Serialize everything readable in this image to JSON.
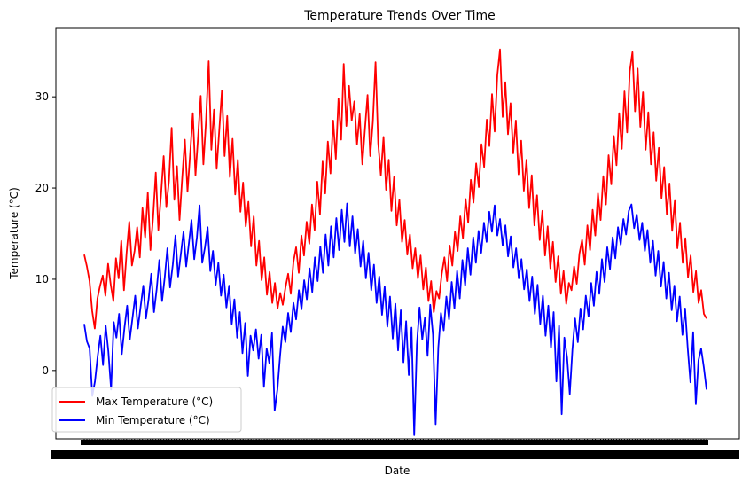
{
  "chart_data": {
    "type": "line",
    "title": "Temperature Trends Over Time",
    "xlabel": "Date",
    "ylabel": "Temperature (°C)",
    "ylim": [
      -7.5,
      37.5
    ],
    "yticks": [
      0,
      10,
      20,
      30
    ],
    "grid": false,
    "legend_position": "lower-left",
    "note": "Daily series over four annual cycles; x tick labels are overplotted and illegible.",
    "series": [
      {
        "name": "Max Temperature (°C)",
        "color": "#ff0000",
        "values": [
          12.7,
          11.4,
          9.8,
          6.5,
          4.6,
          7.9,
          9.3,
          10.4,
          8.2,
          11.7,
          9.4,
          7.6,
          12.3,
          10.1,
          14.2,
          8.8,
          12.9,
          16.3,
          11.5,
          13.1,
          15.7,
          12.4,
          17.8,
          14.6,
          19.5,
          13.2,
          16.8,
          21.7,
          15.4,
          19.2,
          23.5,
          17.9,
          20.8,
          26.6,
          18.7,
          22.4,
          16.5,
          21.1,
          25.3,
          19.6,
          23.8,
          28.2,
          21.4,
          25.7,
          30.1,
          22.6,
          27.4,
          33.9,
          24.2,
          28.6,
          22.1,
          26.3,
          30.7,
          23.5,
          27.9,
          21.2,
          25.4,
          19.3,
          23.1,
          17.4,
          20.6,
          15.8,
          18.5,
          13.6,
          16.9,
          11.5,
          14.2,
          9.9,
          12.4,
          8.3,
          10.8,
          7.4,
          9.6,
          6.8,
          8.5,
          7.2,
          9.1,
          10.6,
          8.4,
          11.9,
          13.5,
          10.7,
          14.8,
          12.6,
          16.3,
          13.9,
          18.2,
          15.4,
          20.7,
          17.1,
          22.9,
          19.4,
          25.1,
          21.6,
          27.4,
          23.2,
          29.8,
          25.3,
          33.6,
          26.8,
          31.2,
          27.4,
          29.5,
          24.8,
          28.1,
          22.6,
          26.4,
          30.2,
          23.5,
          27.3,
          33.8,
          24.9,
          21.4,
          25.6,
          19.8,
          23.1,
          17.5,
          21.2,
          15.9,
          18.7,
          14.1,
          16.5,
          12.7,
          14.9,
          11.2,
          13.4,
          10.1,
          12.6,
          8.9,
          11.3,
          7.6,
          9.8,
          6.4,
          8.7,
          7.9,
          10.6,
          12.4,
          9.8,
          13.7,
          11.5,
          15.2,
          13.1,
          16.9,
          14.5,
          18.8,
          16.2,
          20.9,
          18.4,
          22.7,
          20.1,
          24.8,
          22.3,
          27.5,
          24.6,
          30.3,
          26.2,
          32.4,
          35.2,
          27.8,
          31.6,
          25.9,
          29.3,
          23.8,
          27.4,
          21.5,
          25.2,
          19.7,
          23.1,
          17.8,
          21.4,
          15.9,
          19.2,
          14.3,
          17.5,
          12.6,
          15.8,
          11.2,
          14.1,
          9.7,
          12.5,
          8.4,
          10.9,
          7.3,
          9.6,
          8.8,
          11.4,
          9.5,
          12.8,
          14.3,
          11.6,
          15.9,
          13.2,
          17.6,
          14.8,
          19.4,
          16.5,
          21.3,
          18.2,
          23.6,
          20.4,
          25.7,
          22.5,
          28.2,
          24.3,
          30.6,
          26.1,
          32.8,
          34.9,
          28.4,
          33.1,
          26.7,
          30.5,
          24.2,
          28.3,
          22.6,
          26.1,
          20.8,
          24.4,
          18.9,
          22.3,
          17.1,
          20.5,
          15.3,
          18.6,
          13.4,
          16.2,
          11.8,
          14.5,
          10.2,
          12.6,
          8.6,
          10.9,
          7.4,
          8.8,
          6.2,
          5.7
        ]
      },
      {
        "name": "Min Temperature (°C)",
        "color": "#0000ff",
        "values": [
          5.1,
          3.2,
          2.4,
          -2.8,
          -1.2,
          1.5,
          3.8,
          0.6,
          4.9,
          2.1,
          -2.1,
          5.3,
          3.6,
          6.2,
          1.8,
          4.7,
          7.1,
          3.4,
          5.8,
          8.2,
          4.6,
          6.9,
          9.3,
          5.7,
          7.8,
          10.6,
          6.4,
          8.9,
          12.1,
          7.6,
          10.2,
          13.4,
          9.1,
          11.6,
          14.8,
          10.3,
          12.7,
          15.2,
          11.4,
          13.9,
          16.5,
          12.2,
          14.6,
          18.1,
          11.8,
          13.5,
          15.7,
          10.9,
          13.1,
          9.4,
          11.8,
          8.2,
          10.5,
          6.9,
          9.3,
          5.1,
          7.8,
          3.6,
          6.4,
          1.9,
          5.2,
          -0.6,
          3.8,
          2.2,
          4.5,
          1.3,
          3.9,
          -1.8,
          2.4,
          0.8,
          4.1,
          -4.4,
          -2.1,
          1.6,
          4.8,
          3.1,
          6.3,
          4.2,
          7.4,
          5.6,
          8.8,
          6.7,
          9.9,
          7.8,
          11.2,
          8.6,
          12.4,
          9.8,
          13.6,
          10.7,
          14.9,
          11.5,
          15.8,
          12.4,
          16.7,
          13.2,
          17.6,
          14.1,
          18.3,
          13.6,
          16.9,
          12.8,
          15.5,
          11.4,
          14.2,
          10.1,
          12.9,
          8.8,
          11.6,
          7.4,
          10.3,
          6.1,
          9.2,
          4.8,
          8.1,
          3.5,
          7.3,
          2.2,
          6.6,
          0.9,
          5.4,
          -0.5,
          4.7,
          -7.1,
          2.8,
          6.9,
          3.4,
          5.8,
          1.6,
          7.2,
          3.9,
          -5.9,
          2.5,
          6.3,
          4.4,
          8.1,
          5.6,
          9.7,
          6.8,
          10.9,
          7.9,
          12.1,
          9.3,
          13.4,
          10.5,
          14.6,
          11.8,
          15.3,
          12.9,
          16.2,
          14.1,
          17.4,
          15.2,
          18.1,
          14.8,
          16.6,
          13.7,
          15.9,
          12.5,
          14.7,
          11.3,
          13.4,
          10.1,
          12.2,
          8.9,
          11.1,
          7.6,
          10.3,
          6.2,
          9.4,
          5.1,
          8.2,
          3.8,
          7.1,
          2.5,
          6.4,
          -1.2,
          4.9,
          -4.8,
          3.6,
          1.4,
          -2.6,
          2.3,
          5.7,
          3.1,
          6.8,
          4.5,
          8.2,
          5.9,
          9.6,
          7.1,
          10.8,
          8.4,
          12.2,
          9.7,
          13.5,
          11.1,
          14.6,
          12.3,
          15.7,
          13.8,
          16.6,
          14.9,
          17.5,
          18.2,
          15.6,
          17.1,
          14.3,
          16.2,
          13.1,
          15.4,
          11.8,
          14.2,
          10.4,
          13.1,
          9.2,
          11.9,
          7.9,
          10.7,
          6.6,
          9.3,
          5.4,
          8.1,
          3.9,
          6.8,
          2.4,
          -1.3,
          4.2,
          -3.7,
          1.1,
          2.4,
          0.3,
          -2.1
        ]
      }
    ]
  }
}
